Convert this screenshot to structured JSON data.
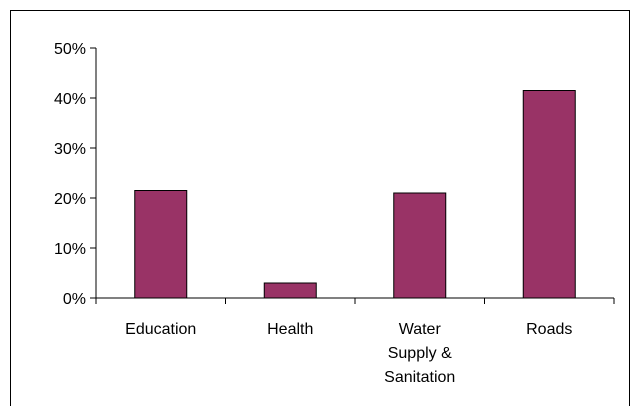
{
  "chart_data": {
    "type": "bar",
    "categories": [
      "Education",
      "Health",
      "Water Supply & Sanitation",
      "Roads"
    ],
    "category_label_lines": [
      [
        "Education"
      ],
      [
        "Health"
      ],
      [
        "Water",
        "Supply &",
        "Sanitation"
      ],
      [
        "Roads"
      ]
    ],
    "values": [
      21.5,
      3.0,
      21.0,
      41.5
    ],
    "ylim": [
      0,
      50
    ],
    "y_ticks": [
      0,
      10,
      20,
      30,
      40,
      50
    ],
    "y_tick_labels": [
      "0%",
      "10%",
      "20%",
      "30%",
      "40%",
      "50%"
    ],
    "title": "",
    "xlabel": "",
    "ylabel": "",
    "grid": false,
    "legend": "none",
    "colors": {
      "bar_fill": "#993366",
      "bar_stroke": "#000000",
      "axis": "#000000",
      "frame": "#000000"
    }
  }
}
